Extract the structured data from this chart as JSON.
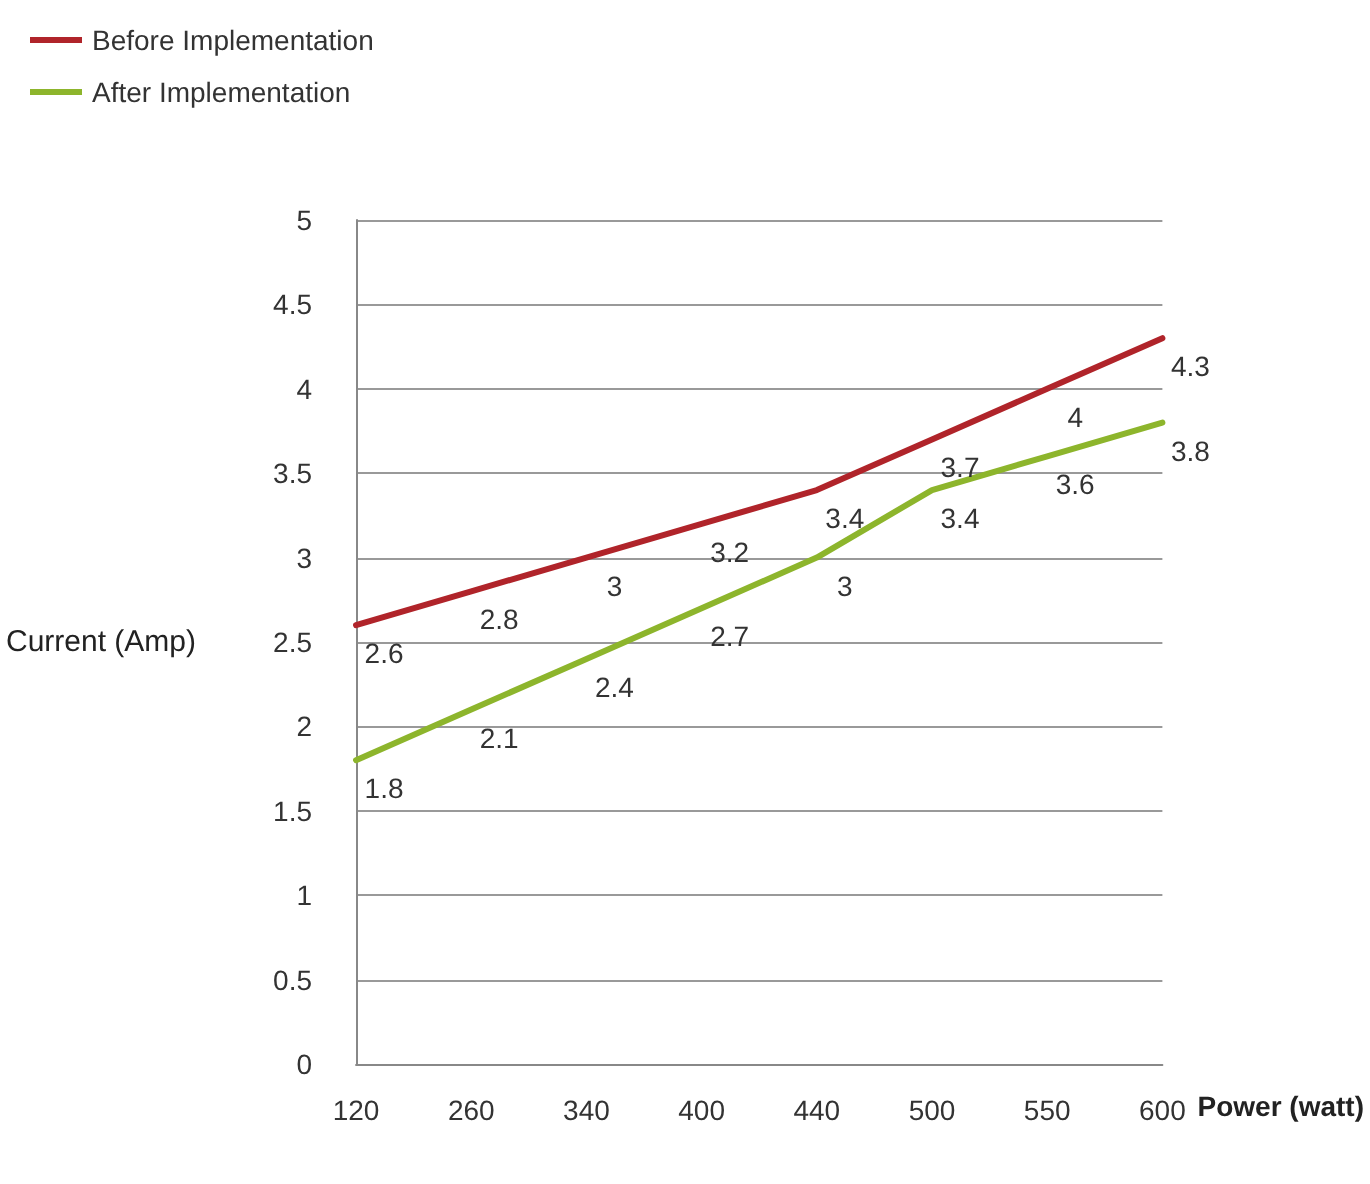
{
  "chart_data": {
    "type": "line",
    "xlabel": "Power (watt)",
    "ylabel": "Current (Amp)",
    "categories": [
      "120",
      "260",
      "340",
      "400",
      "440",
      "500",
      "550",
      "600"
    ],
    "series": [
      {
        "name": "Before Implementation",
        "color": "#b0242a",
        "values": [
          2.6,
          2.8,
          3,
          3.2,
          3.4,
          3.7,
          4,
          4.3
        ]
      },
      {
        "name": "After Implementation",
        "color": "#8db52c",
        "values": [
          1.8,
          2.1,
          2.4,
          2.7,
          3,
          3.4,
          3.6,
          3.8
        ]
      }
    ],
    "ylim": [
      0,
      5
    ],
    "yticks": [
      0,
      0.5,
      1,
      1.5,
      2,
      2.5,
      3,
      3.5,
      4,
      4.5,
      5
    ],
    "grid": "y",
    "legend": "top left",
    "marker": "none",
    "line_style": "solid",
    "data_labels": true
  }
}
